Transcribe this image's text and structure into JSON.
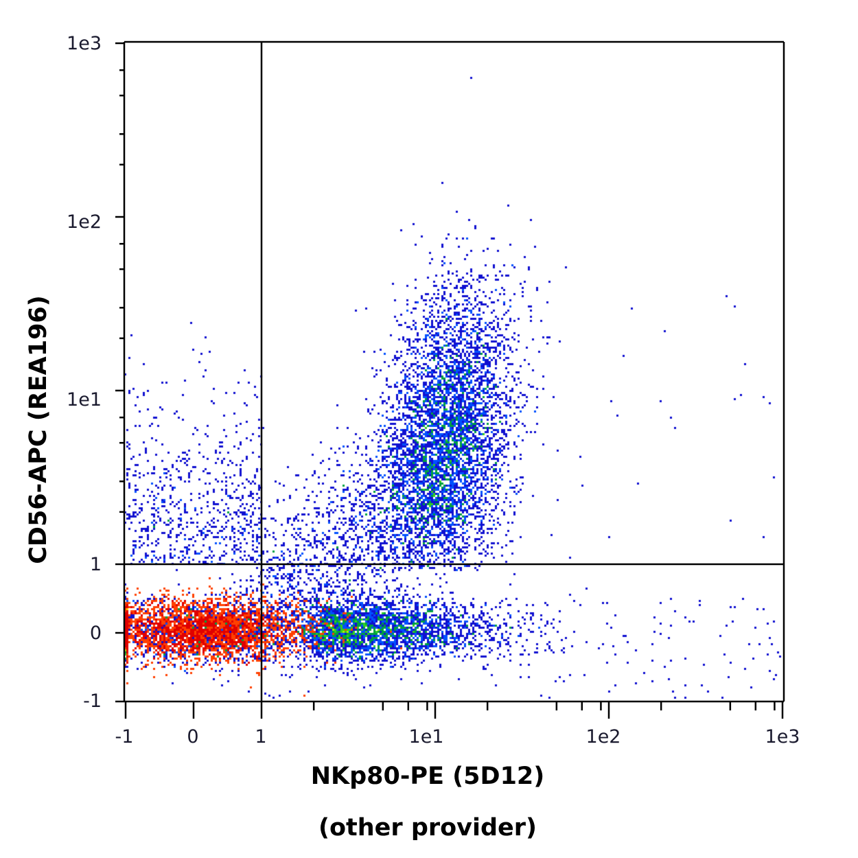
{
  "chart_data": {
    "type": "scatter",
    "subtype": "flow-cytometry-density-dot-plot",
    "title": "",
    "xlabel": "NKp80-PE (5D12)",
    "xlabel_sub": "(other provider)",
    "ylabel": "CD56-APC (REA196)",
    "x_scale": "biexponential (linear -1..1, log 1..1e3)",
    "y_scale": "biexponential (linear -1..1, log 1..1e3)",
    "xlim": [
      -1,
      1000
    ],
    "ylim": [
      -1,
      1000
    ],
    "x_ticks": [
      "-1",
      "0",
      "1",
      "1e1",
      "1e2",
      "1e3"
    ],
    "y_ticks": [
      "-1",
      "0",
      "1",
      "1e1",
      "1e2",
      "1e3"
    ],
    "grid": false,
    "legend": null,
    "quadrant_gates": {
      "x": 1,
      "y": 1
    },
    "color_map": [
      "#1010d0",
      "#0050ff",
      "#00a040",
      "#30d020",
      "#b0f000",
      "#ffd000",
      "#ff4000",
      "#e00000"
    ],
    "populations": [
      {
        "name": "double-negative (NKp80- CD56-) main cluster",
        "center_x": 0.2,
        "center_y": 0.0,
        "x_range": [
          -1,
          3
        ],
        "y_range": [
          -0.6,
          0.6
        ],
        "relative_density": "very high (red/yellow core)"
      },
      {
        "name": "NKp80+ CD56- tail",
        "center_x": 6,
        "center_y": 0.0,
        "x_range": [
          1,
          40
        ],
        "y_range": [
          -0.5,
          0.6
        ],
        "relative_density": "low-medium (blue)"
      },
      {
        "name": "NKp80+ CD56+ (NK cells)",
        "center_x": 12,
        "center_y": 6,
        "x_range": [
          4,
          35
        ],
        "y_range": [
          1,
          100
        ],
        "relative_density": "low-medium (blue)"
      },
      {
        "name": "NKp80- CD56+ scatter",
        "center_x": 0.3,
        "center_y": 3,
        "x_range": [
          -1,
          1
        ],
        "y_range": [
          1,
          20
        ],
        "relative_density": "sparse (blue)"
      }
    ]
  },
  "axes": {
    "y_tick_labels": [
      "1e3",
      "1e2",
      "1e1",
      "1",
      "0",
      "-1"
    ],
    "x_tick_labels": [
      "-1",
      "0",
      "1",
      "1e1",
      "1e2",
      "1e3"
    ]
  },
  "labels": {
    "ylabel": "CD56-APC (REA196)",
    "xlabel": "NKp80-PE (5D12)",
    "xlabel_sub": "(other provider)"
  }
}
